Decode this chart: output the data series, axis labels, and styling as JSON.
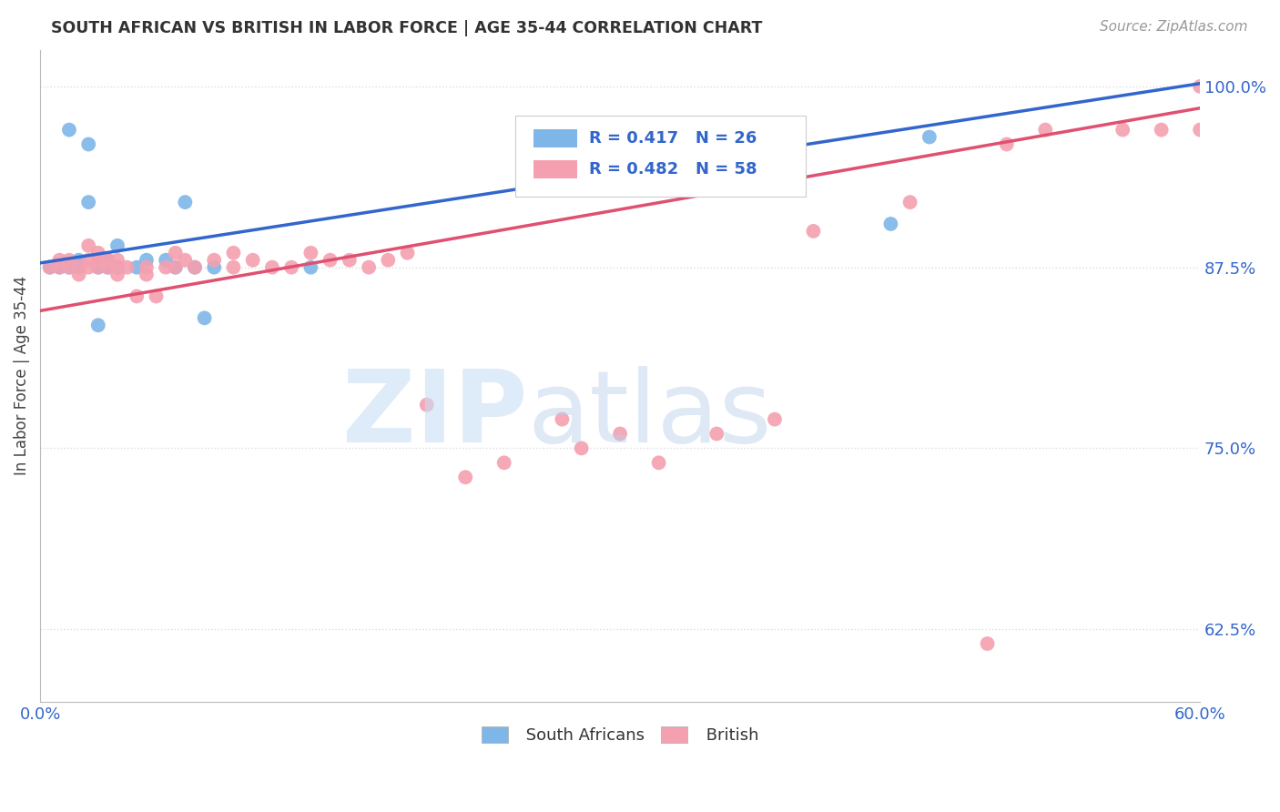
{
  "title": "SOUTH AFRICAN VS BRITISH IN LABOR FORCE | AGE 35-44 CORRELATION CHART",
  "source": "Source: ZipAtlas.com",
  "ylabel": "In Labor Force | Age 35-44",
  "xmin": 0.0,
  "xmax": 0.6,
  "ymin": 0.575,
  "ymax": 1.025,
  "yticks": [
    0.625,
    0.75,
    0.875,
    1.0
  ],
  "ytick_labels": [
    "62.5%",
    "75.0%",
    "87.5%",
    "100.0%"
  ],
  "xtick_labels": [
    "0.0%",
    "60.0%"
  ],
  "sa_color": "#7EB6E8",
  "british_color": "#F4A0B0",
  "sa_line_color": "#3366CC",
  "british_line_color": "#E05070",
  "sa_R": 0.417,
  "sa_N": 26,
  "british_R": 0.482,
  "british_N": 58,
  "sa_x": [
    0.005,
    0.01,
    0.015,
    0.015,
    0.02,
    0.02,
    0.025,
    0.025,
    0.03,
    0.03,
    0.03,
    0.035,
    0.035,
    0.04,
    0.04,
    0.05,
    0.055,
    0.065,
    0.07,
    0.075,
    0.08,
    0.085,
    0.09,
    0.14,
    0.44,
    0.46
  ],
  "sa_y": [
    0.875,
    0.875,
    0.875,
    0.97,
    0.875,
    0.88,
    0.92,
    0.96,
    0.835,
    0.875,
    0.88,
    0.875,
    0.88,
    0.875,
    0.89,
    0.875,
    0.88,
    0.88,
    0.875,
    0.92,
    0.875,
    0.84,
    0.875,
    0.875,
    0.905,
    0.965
  ],
  "british_x": [
    0.005,
    0.01,
    0.01,
    0.015,
    0.015,
    0.02,
    0.02,
    0.025,
    0.025,
    0.025,
    0.03,
    0.03,
    0.03,
    0.035,
    0.035,
    0.04,
    0.04,
    0.04,
    0.045,
    0.05,
    0.055,
    0.055,
    0.06,
    0.065,
    0.07,
    0.07,
    0.075,
    0.08,
    0.09,
    0.1,
    0.1,
    0.11,
    0.12,
    0.13,
    0.14,
    0.15,
    0.16,
    0.17,
    0.18,
    0.19,
    0.2,
    0.22,
    0.24,
    0.27,
    0.28,
    0.3,
    0.32,
    0.35,
    0.38,
    0.4,
    0.45,
    0.5,
    0.52,
    0.56,
    0.58,
    0.6,
    0.6,
    0.49
  ],
  "british_y": [
    0.875,
    0.875,
    0.88,
    0.875,
    0.88,
    0.87,
    0.875,
    0.875,
    0.88,
    0.89,
    0.875,
    0.88,
    0.885,
    0.875,
    0.88,
    0.87,
    0.875,
    0.88,
    0.875,
    0.855,
    0.87,
    0.875,
    0.855,
    0.875,
    0.875,
    0.885,
    0.88,
    0.875,
    0.88,
    0.875,
    0.885,
    0.88,
    0.875,
    0.875,
    0.885,
    0.88,
    0.88,
    0.875,
    0.88,
    0.885,
    0.78,
    0.73,
    0.74,
    0.77,
    0.75,
    0.76,
    0.74,
    0.76,
    0.77,
    0.9,
    0.92,
    0.96,
    0.97,
    0.97,
    0.97,
    0.97,
    1.0,
    0.615
  ],
  "background_color": "#FFFFFF",
  "grid_color": "#DDDDDD"
}
